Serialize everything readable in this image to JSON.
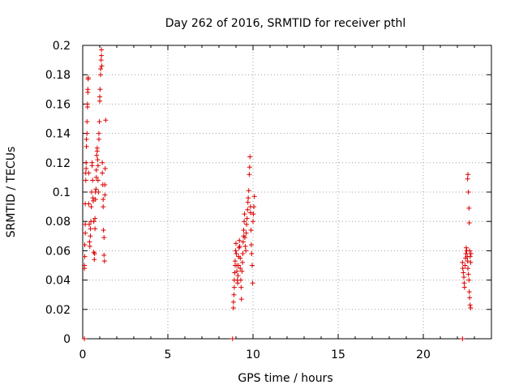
{
  "chart_data": {
    "type": "scatter",
    "title": "Day 262 of 2016, SRMTID for receiver pthl",
    "xlabel": "GPS time / hours",
    "ylabel": "SRMTID / TECUs",
    "xlim": [
      0,
      24
    ],
    "ylim": [
      0,
      0.2
    ],
    "xticks": [
      0,
      5,
      10,
      15,
      20
    ],
    "xtick_labels": [
      "0",
      "5",
      "10",
      "15",
      "20"
    ],
    "yticks": [
      0,
      0.02,
      0.04,
      0.06,
      0.08,
      0.1,
      0.12,
      0.14,
      0.16,
      0.18,
      0.2
    ],
    "ytick_labels": [
      "0",
      "0.02",
      "0.04",
      "0.06",
      "0.08",
      "0.1",
      "0.12",
      "0.14",
      "0.16",
      "0.18",
      "0.2"
    ],
    "grid": true,
    "marker": "plus",
    "color": "#dd0000",
    "series": [
      {
        "name": "",
        "points": [
          [
            0.1,
            0.0
          ],
          [
            8.8,
            0.0
          ],
          [
            22.3,
            0.0
          ],
          [
            0.1,
            0.048
          ],
          [
            0.1,
            0.05
          ],
          [
            0.12,
            0.056
          ],
          [
            0.12,
            0.064
          ],
          [
            0.15,
            0.072
          ],
          [
            0.15,
            0.078
          ],
          [
            0.15,
            0.092
          ],
          [
            0.18,
            0.108
          ],
          [
            0.18,
            0.113
          ],
          [
            0.2,
            0.116
          ],
          [
            0.2,
            0.12
          ],
          [
            0.22,
            0.131
          ],
          [
            0.22,
            0.136
          ],
          [
            0.25,
            0.14
          ],
          [
            0.25,
            0.148
          ],
          [
            0.28,
            0.158
          ],
          [
            0.28,
            0.16
          ],
          [
            0.3,
            0.168
          ],
          [
            0.3,
            0.17
          ],
          [
            0.32,
            0.177
          ],
          [
            0.32,
            0.178
          ],
          [
            0.35,
            0.113
          ],
          [
            0.35,
            0.092
          ],
          [
            0.38,
            0.078
          ],
          [
            0.4,
            0.066
          ],
          [
            0.42,
            0.063
          ],
          [
            0.45,
            0.07
          ],
          [
            0.45,
            0.075
          ],
          [
            0.48,
            0.08
          ],
          [
            0.5,
            0.09
          ],
          [
            0.52,
            0.1
          ],
          [
            0.55,
            0.118
          ],
          [
            0.55,
            0.12
          ],
          [
            0.58,
            0.108
          ],
          [
            0.6,
            0.096
          ],
          [
            0.62,
            0.094
          ],
          [
            0.65,
            0.08
          ],
          [
            0.65,
            0.059
          ],
          [
            0.68,
            0.054
          ],
          [
            0.7,
            0.058
          ],
          [
            0.72,
            0.075
          ],
          [
            0.72,
            0.082
          ],
          [
            0.75,
            0.095
          ],
          [
            0.75,
            0.1
          ],
          [
            0.78,
            0.102
          ],
          [
            0.8,
            0.11
          ],
          [
            0.8,
            0.115
          ],
          [
            0.82,
            0.125
          ],
          [
            0.85,
            0.128
          ],
          [
            0.85,
            0.13
          ],
          [
            0.88,
            0.122
          ],
          [
            0.9,
            0.118
          ],
          [
            0.9,
            0.108
          ],
          [
            0.92,
            0.1
          ],
          [
            0.95,
            0.136
          ],
          [
            0.95,
            0.14
          ],
          [
            0.98,
            0.148
          ],
          [
            1.0,
            0.162
          ],
          [
            1.0,
            0.165
          ],
          [
            1.02,
            0.17
          ],
          [
            1.05,
            0.18
          ],
          [
            1.05,
            0.184
          ],
          [
            1.08,
            0.19
          ],
          [
            1.1,
            0.193
          ],
          [
            1.1,
            0.197
          ],
          [
            1.12,
            0.186
          ],
          [
            1.15,
            0.12
          ],
          [
            1.15,
            0.113
          ],
          [
            1.18,
            0.105
          ],
          [
            1.2,
            0.095
          ],
          [
            1.2,
            0.09
          ],
          [
            1.22,
            0.074
          ],
          [
            1.25,
            0.069
          ],
          [
            1.25,
            0.057
          ],
          [
            1.28,
            0.053
          ],
          [
            1.3,
            0.098
          ],
          [
            1.3,
            0.105
          ],
          [
            1.32,
            0.116
          ],
          [
            1.35,
            0.149
          ],
          [
            8.85,
            0.021
          ],
          [
            8.85,
            0.025
          ],
          [
            8.88,
            0.03
          ],
          [
            8.9,
            0.035
          ],
          [
            8.9,
            0.04
          ],
          [
            8.92,
            0.045
          ],
          [
            8.95,
            0.05
          ],
          [
            8.95,
            0.053
          ],
          [
            8.98,
            0.06
          ],
          [
            9.0,
            0.065
          ],
          [
            9.02,
            0.058
          ],
          [
            9.05,
            0.05
          ],
          [
            9.05,
            0.046
          ],
          [
            9.08,
            0.04
          ],
          [
            9.1,
            0.038
          ],
          [
            9.12,
            0.043
          ],
          [
            9.15,
            0.05
          ],
          [
            9.15,
            0.056
          ],
          [
            9.18,
            0.062
          ],
          [
            9.2,
            0.067
          ],
          [
            9.22,
            0.063
          ],
          [
            9.25,
            0.055
          ],
          [
            9.25,
            0.048
          ],
          [
            9.28,
            0.04
          ],
          [
            9.3,
            0.035
          ],
          [
            9.32,
            0.027
          ],
          [
            9.35,
            0.046
          ],
          [
            9.38,
            0.052
          ],
          [
            9.4,
            0.058
          ],
          [
            9.42,
            0.066
          ],
          [
            9.45,
            0.07
          ],
          [
            9.45,
            0.074
          ],
          [
            9.48,
            0.08
          ],
          [
            9.5,
            0.085
          ],
          [
            9.52,
            0.069
          ],
          [
            9.55,
            0.063
          ],
          [
            9.58,
            0.06
          ],
          [
            9.6,
            0.072
          ],
          [
            9.62,
            0.078
          ],
          [
            9.65,
            0.082
          ],
          [
            9.68,
            0.088
          ],
          [
            9.7,
            0.093
          ],
          [
            9.72,
            0.096
          ],
          [
            9.75,
            0.101
          ],
          [
            9.78,
            0.112
          ],
          [
            9.8,
            0.117
          ],
          [
            9.82,
            0.124
          ],
          [
            9.85,
            0.09
          ],
          [
            9.85,
            0.086
          ],
          [
            9.88,
            0.074
          ],
          [
            9.9,
            0.064
          ],
          [
            9.92,
            0.058
          ],
          [
            9.95,
            0.05
          ],
          [
            9.98,
            0.038
          ],
          [
            10.0,
            0.08
          ],
          [
            10.02,
            0.085
          ],
          [
            10.05,
            0.09
          ],
          [
            10.08,
            0.097
          ],
          [
            22.3,
            0.052
          ],
          [
            22.32,
            0.048
          ],
          [
            22.35,
            0.045
          ],
          [
            22.38,
            0.042
          ],
          [
            22.4,
            0.038
          ],
          [
            22.42,
            0.035
          ],
          [
            22.45,
            0.05
          ],
          [
            22.48,
            0.055
          ],
          [
            22.5,
            0.058
          ],
          [
            22.52,
            0.062
          ],
          [
            22.55,
            0.06
          ],
          [
            22.58,
            0.056
          ],
          [
            22.6,
            0.053
          ],
          [
            22.62,
            0.048
          ],
          [
            22.65,
            0.044
          ],
          [
            22.68,
            0.04
          ],
          [
            22.7,
            0.032
          ],
          [
            22.72,
            0.028
          ],
          [
            22.75,
            0.023
          ],
          [
            22.78,
            0.021
          ],
          [
            22.6,
            0.109
          ],
          [
            22.62,
            0.112
          ],
          [
            22.65,
            0.1
          ],
          [
            22.68,
            0.089
          ],
          [
            22.7,
            0.079
          ],
          [
            22.72,
            0.06
          ],
          [
            22.75,
            0.056
          ],
          [
            22.78,
            0.052
          ],
          [
            22.8,
            0.058
          ]
        ]
      }
    ]
  }
}
